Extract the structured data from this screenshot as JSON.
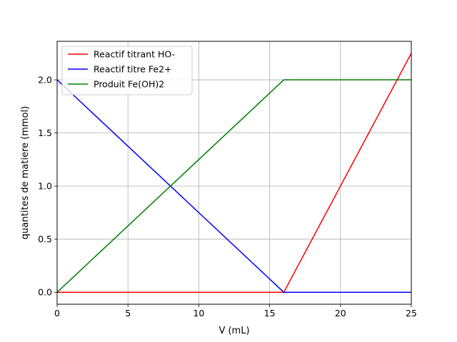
{
  "chart_data": {
    "type": "line",
    "title": "",
    "xlabel": "V (mL)",
    "ylabel": "quantites de matiere (mmol)",
    "xlim": [
      0,
      25
    ],
    "ylim": [
      -0.1125,
      2.3625
    ],
    "x_ticks": [
      0,
      5,
      10,
      15,
      20,
      25
    ],
    "y_ticks": [
      0.0,
      0.5,
      1.0,
      1.5,
      2.0
    ],
    "x_tick_labels": [
      "0",
      "5",
      "10",
      "15",
      "20",
      "25"
    ],
    "y_tick_labels": [
      "0.0",
      "0.5",
      "1.0",
      "1.5",
      "2.0"
    ],
    "grid": true,
    "legend_position": "upper-left",
    "series": [
      {
        "name": "Reactif titrant HO-",
        "color": "#ff0000",
        "x": [
          0,
          16,
          25
        ],
        "y": [
          0,
          0,
          2.25
        ]
      },
      {
        "name": "Reactif titre Fe2+",
        "color": "#0000ff",
        "x": [
          0,
          16,
          25
        ],
        "y": [
          2.0,
          0,
          0
        ]
      },
      {
        "name": "Produit Fe(OH)2",
        "color": "#008000",
        "x": [
          0,
          16,
          25
        ],
        "y": [
          0,
          2.0,
          2.0
        ]
      }
    ]
  }
}
